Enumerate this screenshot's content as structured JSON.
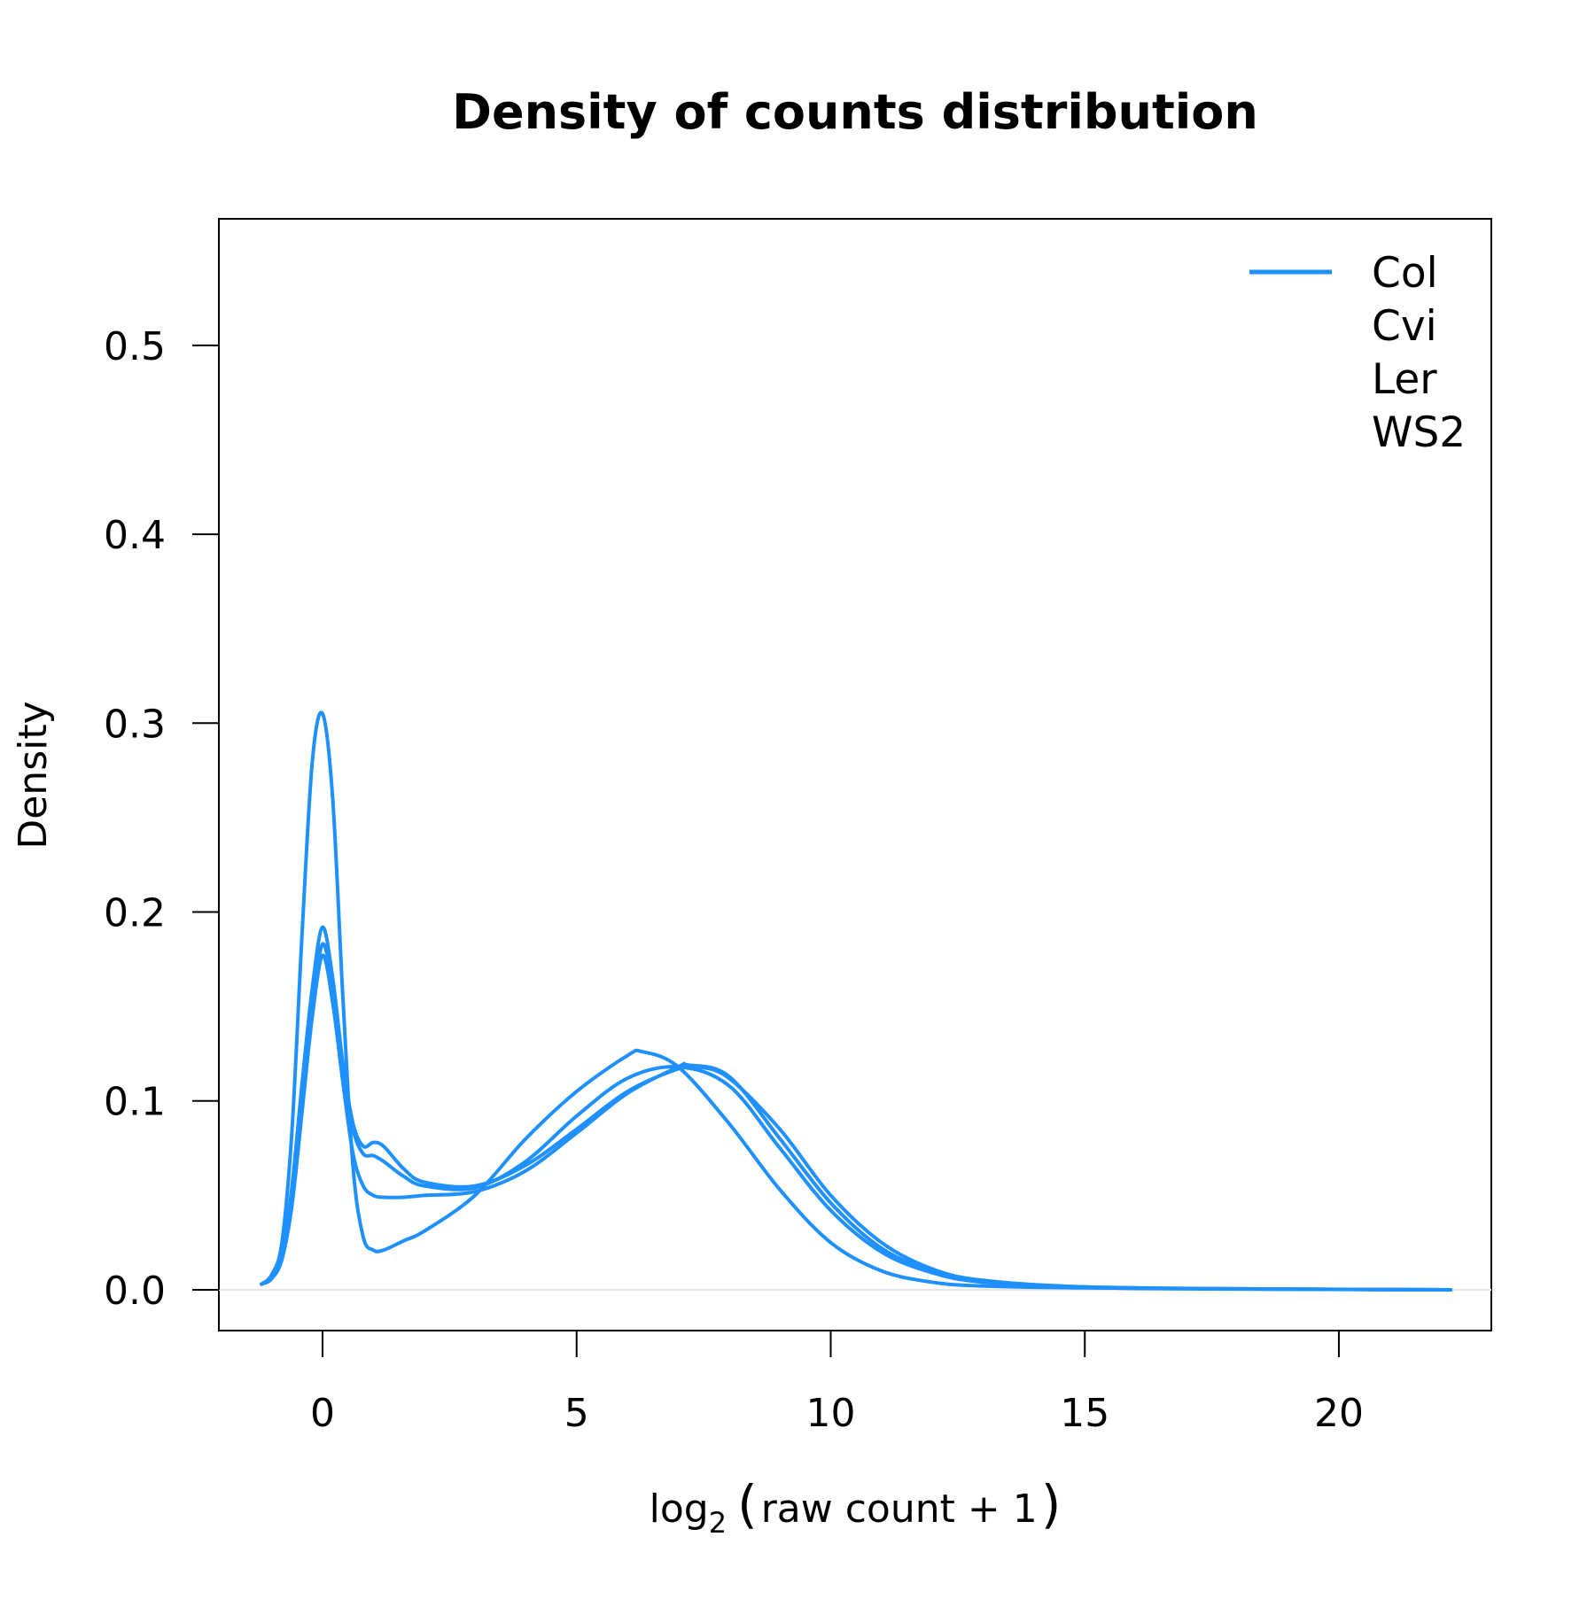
{
  "chart_data": {
    "type": "line",
    "title": "Density of counts distribution",
    "xlabel": {
      "prefix": "log",
      "subscript": "2",
      "paren_open": "(",
      "body": "raw count + 1",
      "paren_close": ")"
    },
    "ylabel": "Density",
    "xlim": [
      -2.04,
      23.0
    ],
    "ylim": [
      -0.0216,
      0.567
    ],
    "x_ticks": [
      0,
      5,
      10,
      15,
      20
    ],
    "x_tick_labels": [
      "0",
      "5",
      "10",
      "15",
      "20"
    ],
    "y_ticks": [
      0.0,
      0.1,
      0.2,
      0.3,
      0.4,
      0.5
    ],
    "y_tick_labels": [
      "0.0",
      "0.1",
      "0.2",
      "0.3",
      "0.4",
      "0.5"
    ],
    "grid": false,
    "zero_line": true,
    "legend": {
      "position": "top-right",
      "entries": [
        "Col",
        "Cvi",
        "Ler",
        "WS2"
      ]
    },
    "colors": {
      "series": "#1E90FF",
      "axis": "#000000",
      "zero_line": "#E6E6E6"
    },
    "series": [
      {
        "x": [
          -1.2,
          -1.0,
          -0.8,
          -0.6,
          -0.4,
          -0.2,
          0.0,
          0.2,
          0.4,
          0.6,
          0.8,
          1.0,
          1.2,
          1.6,
          2.0,
          3.0,
          4.0,
          5.0,
          6.0,
          6.3,
          7.0,
          8.0,
          9.0,
          10.0,
          11.0,
          12.0,
          13.0,
          15.0,
          18.0,
          22.2
        ],
        "y": [
          0.003,
          0.008,
          0.025,
          0.085,
          0.19,
          0.28,
          0.305,
          0.26,
          0.155,
          0.065,
          0.028,
          0.021,
          0.021,
          0.026,
          0.031,
          0.05,
          0.08,
          0.105,
          0.124,
          0.126,
          0.118,
          0.088,
          0.053,
          0.025,
          0.01,
          0.004,
          0.002,
          0.001,
          0.0005,
          0.0
        ]
      },
      {
        "x": [
          -1.2,
          -1.0,
          -0.8,
          -0.6,
          -0.4,
          -0.2,
          0.0,
          0.2,
          0.4,
          0.6,
          0.8,
          1.0,
          1.2,
          1.6,
          2.0,
          3.0,
          4.0,
          5.0,
          6.0,
          7.0,
          7.4,
          8.0,
          9.0,
          10.0,
          11.0,
          12.0,
          13.0,
          15.0,
          18.0,
          22.2
        ],
        "y": [
          0.003,
          0.006,
          0.018,
          0.055,
          0.11,
          0.16,
          0.192,
          0.165,
          0.12,
          0.088,
          0.076,
          0.078,
          0.076,
          0.064,
          0.057,
          0.055,
          0.066,
          0.085,
          0.105,
          0.117,
          0.118,
          0.112,
          0.085,
          0.05,
          0.025,
          0.011,
          0.005,
          0.0015,
          0.0005,
          0.0
        ]
      },
      {
        "x": [
          -1.2,
          -1.0,
          -0.8,
          -0.6,
          -0.4,
          -0.2,
          0.0,
          0.2,
          0.4,
          0.6,
          0.8,
          1.0,
          1.2,
          1.6,
          2.0,
          3.0,
          4.0,
          5.0,
          6.0,
          7.0,
          8.0,
          9.0,
          10.0,
          11.0,
          12.0,
          13.0,
          15.0,
          18.0,
          22.2
        ],
        "y": [
          0.003,
          0.006,
          0.017,
          0.05,
          0.1,
          0.15,
          0.183,
          0.16,
          0.118,
          0.085,
          0.072,
          0.071,
          0.068,
          0.06,
          0.055,
          0.054,
          0.068,
          0.092,
          0.112,
          0.118,
          0.108,
          0.075,
          0.042,
          0.02,
          0.009,
          0.004,
          0.0015,
          0.0005,
          0.0
        ]
      },
      {
        "x": [
          -1.2,
          -1.0,
          -0.8,
          -0.6,
          -0.4,
          -0.2,
          0.0,
          0.2,
          0.4,
          0.6,
          0.8,
          1.0,
          1.2,
          1.6,
          2.0,
          3.0,
          4.0,
          5.0,
          6.0,
          7.0,
          7.2,
          8.0,
          9.0,
          10.0,
          11.0,
          12.0,
          13.0,
          15.0,
          18.0,
          22.2
        ],
        "y": [
          0.003,
          0.006,
          0.016,
          0.045,
          0.095,
          0.145,
          0.177,
          0.152,
          0.11,
          0.072,
          0.055,
          0.05,
          0.049,
          0.049,
          0.05,
          0.052,
          0.063,
          0.083,
          0.104,
          0.118,
          0.119,
          0.113,
          0.08,
          0.046,
          0.022,
          0.01,
          0.004,
          0.0012,
          0.0004,
          0.0
        ]
      }
    ]
  }
}
